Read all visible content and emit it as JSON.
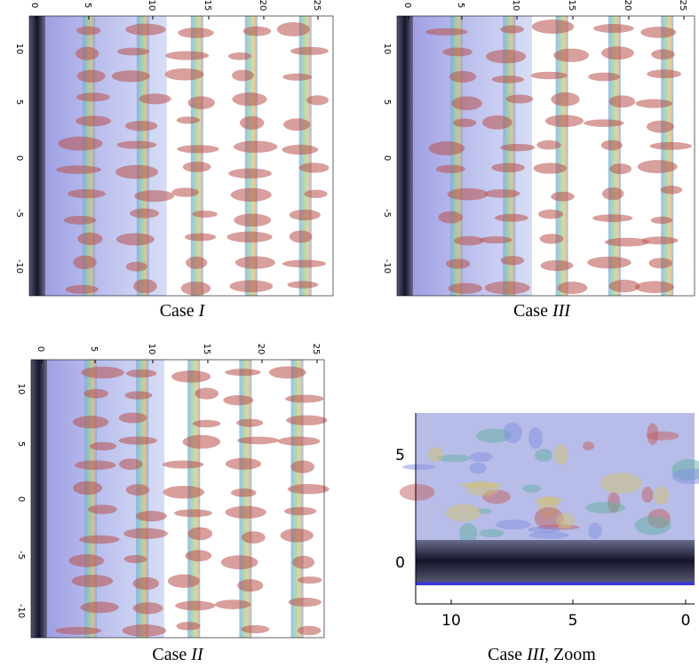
{
  "panels": [
    {
      "caption": {
        "prefix": "Case ",
        "roman": "I"
      },
      "top_ticks": [
        0,
        5,
        10,
        15,
        20,
        25
      ],
      "left_ticks": [
        10,
        5,
        0,
        -5,
        -10
      ]
    },
    {
      "caption": {
        "prefix": "Case ",
        "roman": "III"
      },
      "top_ticks": [
        0,
        5,
        10,
        15,
        20,
        25
      ],
      "left_ticks": [
        10,
        5,
        0,
        -5,
        -10
      ]
    },
    {
      "caption": {
        "prefix": "Case ",
        "roman": "II"
      },
      "top_ticks": [
        0,
        5,
        10,
        15,
        20,
        25
      ],
      "left_ticks": [
        10,
        5,
        0,
        -5,
        -10
      ]
    },
    {
      "caption": {
        "prefix": "Case ",
        "roman": "III",
        "suffix": ", Zoom"
      },
      "left_ticks": [
        5,
        0
      ],
      "bottom_ticks": [
        10,
        5,
        0
      ]
    }
  ]
}
